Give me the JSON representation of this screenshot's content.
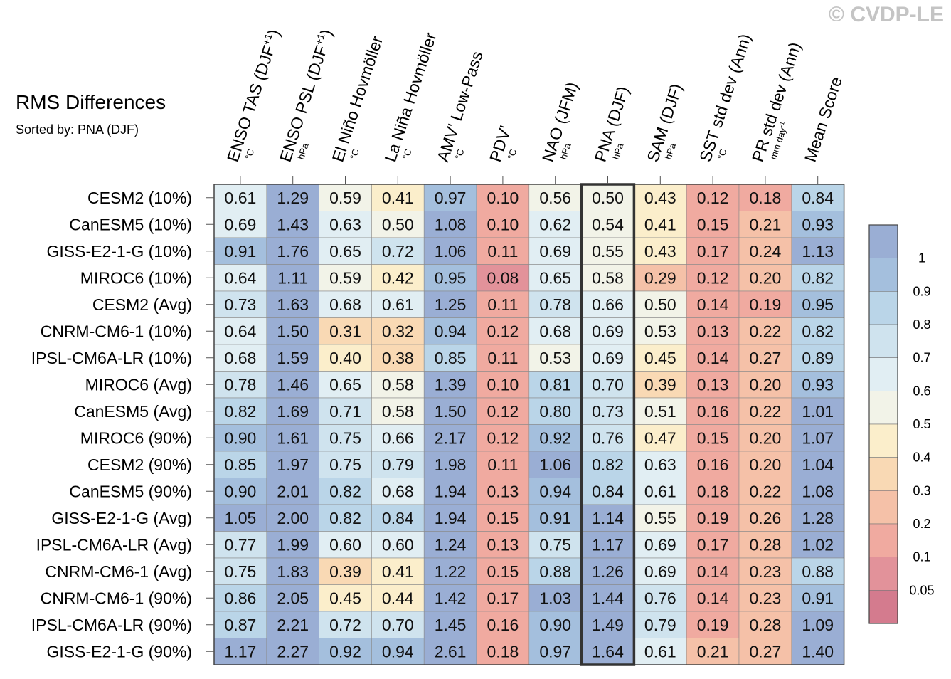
{
  "watermark": "© CVDP-LE",
  "chart_data": {
    "type": "heatmap",
    "title": "RMS Differences",
    "subtitle": "Sorted by: PNA (DJF)",
    "columns": [
      {
        "label": "ENSO TAS (DJF",
        "sup": "+1",
        "close": ")",
        "unit": "°C"
      },
      {
        "label": "ENSO PSL (DJF",
        "sup": "+1",
        "close": ")",
        "unit": "hPa"
      },
      {
        "label": "El Niño Hovmöller",
        "sup": "",
        "close": "",
        "unit": "°C"
      },
      {
        "label": "La Niña Hovmöller",
        "sup": "",
        "close": "",
        "unit": "°C"
      },
      {
        "label": "AMV' Low-Pass",
        "sup": "",
        "close": "",
        "unit": "°C"
      },
      {
        "label": "PDV'",
        "sup": "",
        "close": "",
        "unit": "°C"
      },
      {
        "label": "NAO (JFM)",
        "sup": "",
        "close": "",
        "unit": "hPa"
      },
      {
        "label": "PNA (DJF)",
        "sup": "",
        "close": "",
        "unit": "hPa"
      },
      {
        "label": "SAM (DJF)",
        "sup": "",
        "close": "",
        "unit": "hPa"
      },
      {
        "label": "SST std dev (Ann)",
        "sup": "",
        "close": "",
        "unit": "°C"
      },
      {
        "label": "PR std dev (Ann)",
        "sup": "",
        "close": "",
        "unit": "mm day",
        "unit_sup": "-1"
      },
      {
        "label": "Mean Score",
        "sup": "",
        "close": "",
        "unit": ""
      }
    ],
    "rows": [
      {
        "label": "CESM2 (10%)",
        "values": [
          0.61,
          1.29,
          0.59,
          0.41,
          0.97,
          0.1,
          0.56,
          0.5,
          0.43,
          0.12,
          0.18,
          0.84
        ]
      },
      {
        "label": "CanESM5 (10%)",
        "values": [
          0.69,
          1.43,
          0.63,
          0.5,
          1.08,
          0.1,
          0.62,
          0.54,
          0.41,
          0.15,
          0.21,
          0.93
        ]
      },
      {
        "label": "GISS-E2-1-G (10%)",
        "values": [
          0.91,
          1.76,
          0.65,
          0.72,
          1.06,
          0.11,
          0.69,
          0.55,
          0.43,
          0.17,
          0.24,
          1.13
        ]
      },
      {
        "label": "MIROC6 (10%)",
        "values": [
          0.64,
          1.11,
          0.59,
          0.42,
          0.95,
          0.08,
          0.65,
          0.58,
          0.29,
          0.12,
          0.2,
          0.82
        ]
      },
      {
        "label": "CESM2 (Avg)",
        "values": [
          0.73,
          1.63,
          0.68,
          0.61,
          1.25,
          0.11,
          0.78,
          0.66,
          0.5,
          0.14,
          0.19,
          0.95
        ]
      },
      {
        "label": "CNRM-CM6-1 (10%)",
        "values": [
          0.64,
          1.5,
          0.31,
          0.32,
          0.94,
          0.12,
          0.68,
          0.69,
          0.53,
          0.13,
          0.22,
          0.82
        ]
      },
      {
        "label": "IPSL-CM6A-LR (10%)",
        "values": [
          0.68,
          1.59,
          0.4,
          0.38,
          0.85,
          0.11,
          0.53,
          0.69,
          0.45,
          0.14,
          0.27,
          0.89
        ]
      },
      {
        "label": "MIROC6 (Avg)",
        "values": [
          0.78,
          1.46,
          0.65,
          0.58,
          1.39,
          0.1,
          0.81,
          0.7,
          0.39,
          0.13,
          0.2,
          0.93
        ]
      },
      {
        "label": "CanESM5 (Avg)",
        "values": [
          0.82,
          1.69,
          0.71,
          0.58,
          1.5,
          0.12,
          0.8,
          0.73,
          0.51,
          0.16,
          0.22,
          1.01
        ]
      },
      {
        "label": "MIROC6 (90%)",
        "values": [
          0.9,
          1.61,
          0.75,
          0.66,
          2.17,
          0.12,
          0.92,
          0.76,
          0.47,
          0.15,
          0.2,
          1.07
        ]
      },
      {
        "label": "CESM2 (90%)",
        "values": [
          0.85,
          1.97,
          0.75,
          0.79,
          1.98,
          0.11,
          1.06,
          0.82,
          0.63,
          0.16,
          0.2,
          1.04
        ]
      },
      {
        "label": "CanESM5 (90%)",
        "values": [
          0.9,
          2.01,
          0.82,
          0.68,
          1.94,
          0.13,
          0.94,
          0.84,
          0.61,
          0.18,
          0.22,
          1.08
        ]
      },
      {
        "label": "GISS-E2-1-G (Avg)",
        "values": [
          1.05,
          2.0,
          0.82,
          0.84,
          1.94,
          0.15,
          0.91,
          1.14,
          0.55,
          0.19,
          0.26,
          1.28
        ]
      },
      {
        "label": "IPSL-CM6A-LR (Avg)",
        "values": [
          0.77,
          1.99,
          0.6,
          0.6,
          1.24,
          0.13,
          0.75,
          1.17,
          0.69,
          0.17,
          0.28,
          1.02
        ]
      },
      {
        "label": "CNRM-CM6-1 (Avg)",
        "values": [
          0.75,
          1.83,
          0.39,
          0.41,
          1.22,
          0.15,
          0.88,
          1.26,
          0.69,
          0.14,
          0.23,
          0.88
        ]
      },
      {
        "label": "CNRM-CM6-1 (90%)",
        "values": [
          0.86,
          2.05,
          0.45,
          0.44,
          1.42,
          0.17,
          1.03,
          1.44,
          0.76,
          0.14,
          0.23,
          0.91
        ]
      },
      {
        "label": "IPSL-CM6A-LR (90%)",
        "values": [
          0.87,
          2.21,
          0.72,
          0.7,
          1.45,
          0.16,
          0.9,
          1.49,
          0.79,
          0.19,
          0.28,
          1.09
        ]
      },
      {
        "label": "GISS-E2-1-G (90%)",
        "values": [
          1.17,
          2.27,
          0.92,
          0.94,
          2.61,
          0.18,
          0.97,
          1.64,
          0.61,
          0.21,
          0.27,
          1.4
        ]
      }
    ],
    "highlight_column": 7,
    "colorbar": {
      "levels": [
        0.05,
        0.1,
        0.2,
        0.3,
        0.4,
        0.5,
        0.6,
        0.7,
        0.8,
        0.9,
        1
      ],
      "tick_labels": [
        "0.05",
        "0.1",
        "0.2",
        "0.3",
        "0.4",
        "0.5",
        "0.6",
        "0.7",
        "0.8",
        "0.9",
        "1"
      ],
      "colors": [
        "#d47b8e",
        "#e2929a",
        "#f0aaa0",
        "#f5c1a8",
        "#f9d9b4",
        "#fbeecb",
        "#f2f3e8",
        "#e1eef3",
        "#cfe3ee",
        "#bad5e8",
        "#a4bfdd",
        "#9aaed4"
      ]
    }
  }
}
